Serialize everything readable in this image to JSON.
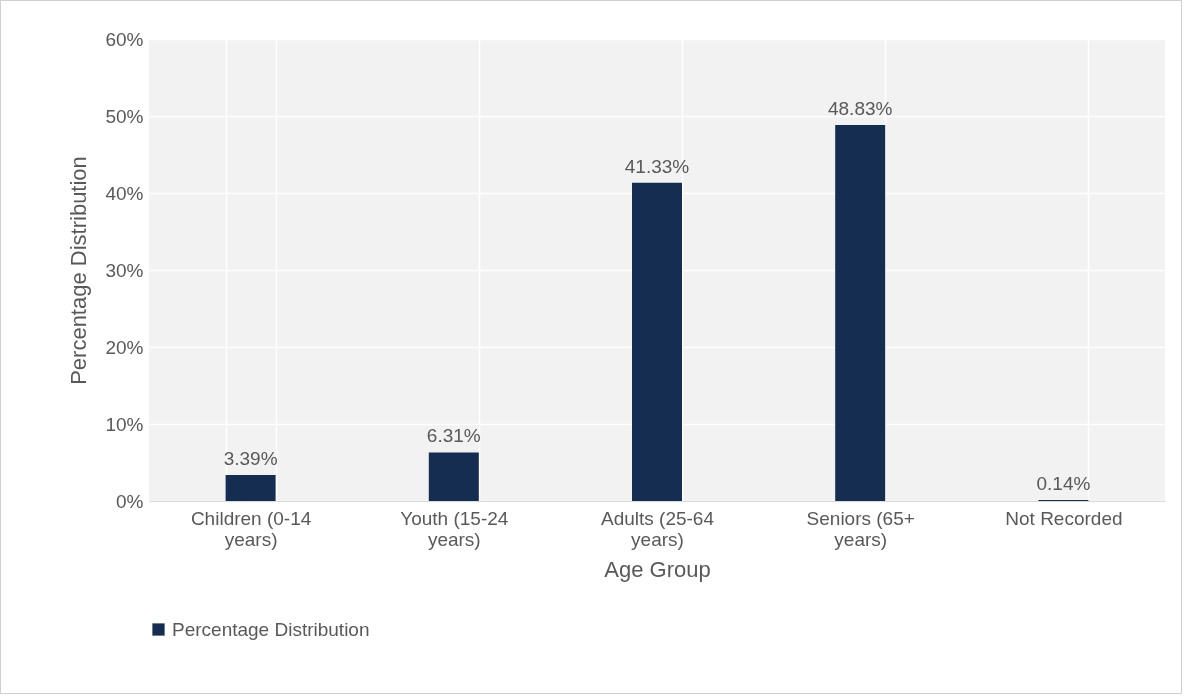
{
  "chart_data": {
    "type": "bar",
    "xlabel": "Age Group",
    "ylabel": "Percentage Distribution",
    "categories": [
      "Children (0-14 years)",
      "Youth (15-24 years)",
      "Adults (25-64 years)",
      "Seniors (65+ years)",
      "Not Recorded"
    ],
    "series": [
      {
        "name": "Percentage Distribution",
        "color": "#142d50",
        "values": [
          3.39,
          6.31,
          41.33,
          48.83,
          0.14
        ],
        "value_labels": [
          "3.39%",
          "6.31%",
          "41.33%",
          "48.83%",
          "0.14%"
        ]
      }
    ],
    "ylim": [
      0,
      60
    ],
    "yticks": [
      {
        "value": 0,
        "label": "0%"
      },
      {
        "value": 10,
        "label": "10%"
      },
      {
        "value": 20,
        "label": "20%"
      },
      {
        "value": 30,
        "label": "30%"
      },
      {
        "value": 40,
        "label": "40%"
      },
      {
        "value": 50,
        "label": "50%"
      },
      {
        "value": 60,
        "label": "60%"
      }
    ],
    "grid": true,
    "legend": "bottom"
  }
}
